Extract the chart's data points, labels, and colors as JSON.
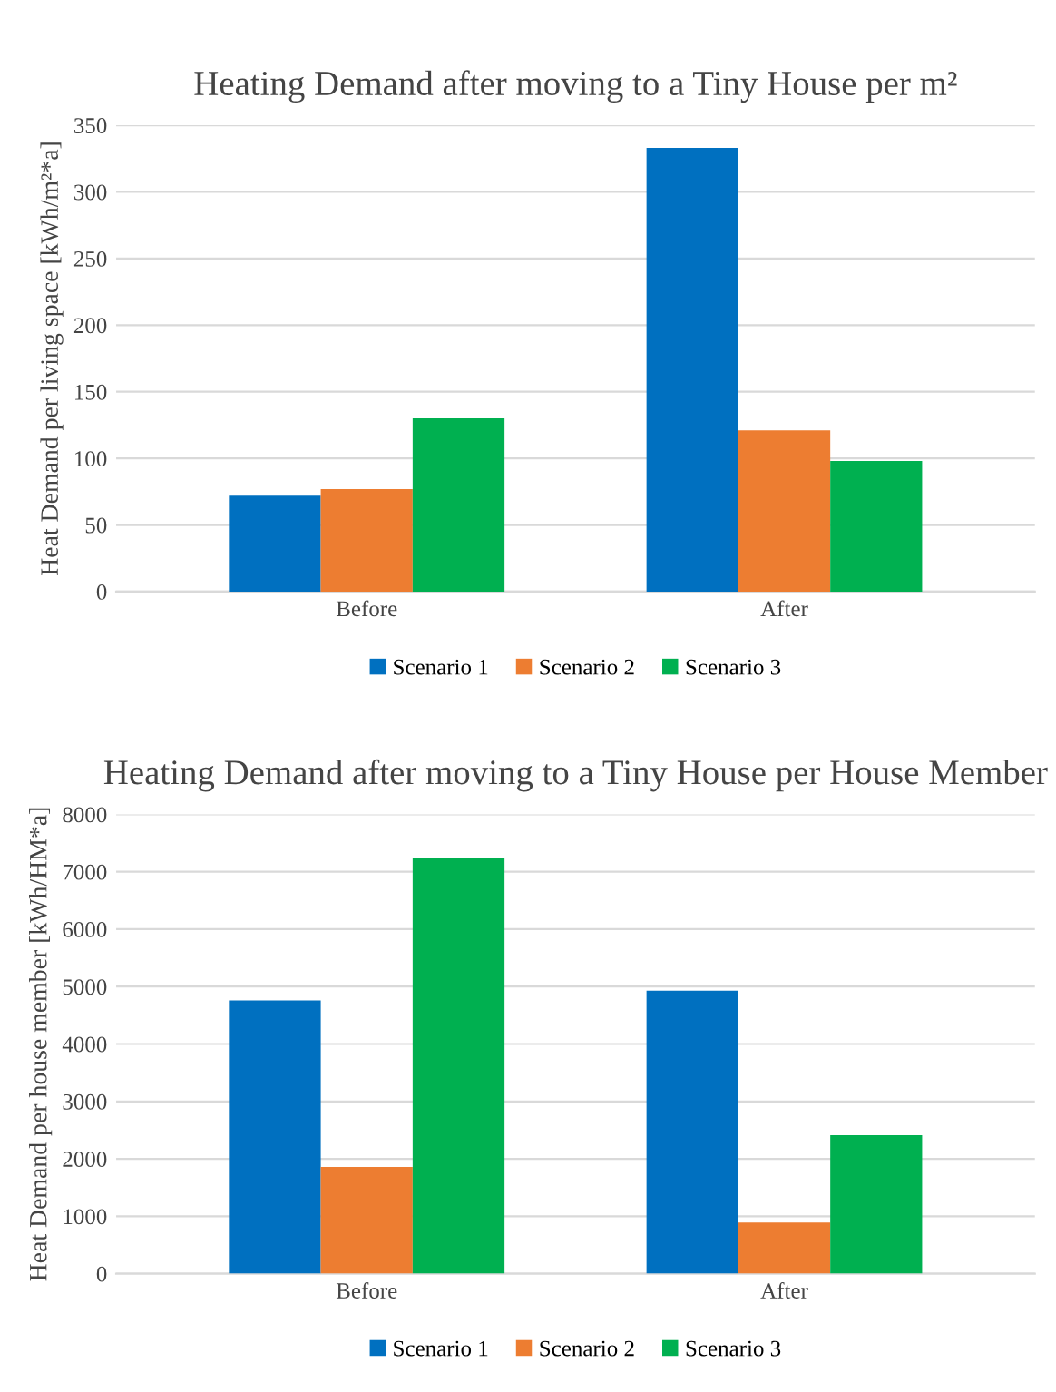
{
  "chart_data": [
    {
      "type": "bar",
      "title": "Heating Demand after moving to a Tiny House per m²",
      "ylabel": "Heat Demand per living space [kWh/m²*a]",
      "categories": [
        "Before",
        "After"
      ],
      "series": [
        {
          "name": "Scenario 1",
          "color": "#0070c0",
          "values": [
            72,
            333
          ]
        },
        {
          "name": "Scenario 2",
          "color": "#ed7d31",
          "values": [
            77,
            121
          ]
        },
        {
          "name": "Scenario 3",
          "color": "#00b050",
          "values": [
            130,
            98
          ]
        }
      ],
      "ylim": [
        0,
        350
      ],
      "yticks": [
        0,
        50,
        100,
        150,
        200,
        250,
        300,
        350
      ],
      "grid": "y",
      "legend": "bottom"
    },
    {
      "type": "bar",
      "title": "Heating Demand after moving to a Tiny House per House Member",
      "ylabel": "Heat Demand per house member [kWh/HM*a]",
      "categories": [
        "Before",
        "After"
      ],
      "series": [
        {
          "name": "Scenario 1",
          "color": "#0070c0",
          "values": [
            4760,
            4930
          ]
        },
        {
          "name": "Scenario 2",
          "color": "#ed7d31",
          "values": [
            1860,
            890
          ]
        },
        {
          "name": "Scenario 3",
          "color": "#00b050",
          "values": [
            7240,
            2410
          ]
        }
      ],
      "ylim": [
        0,
        8000
      ],
      "yticks": [
        0,
        1000,
        2000,
        3000,
        4000,
        5000,
        6000,
        7000,
        8000
      ],
      "grid": "y",
      "legend": "bottom"
    }
  ]
}
